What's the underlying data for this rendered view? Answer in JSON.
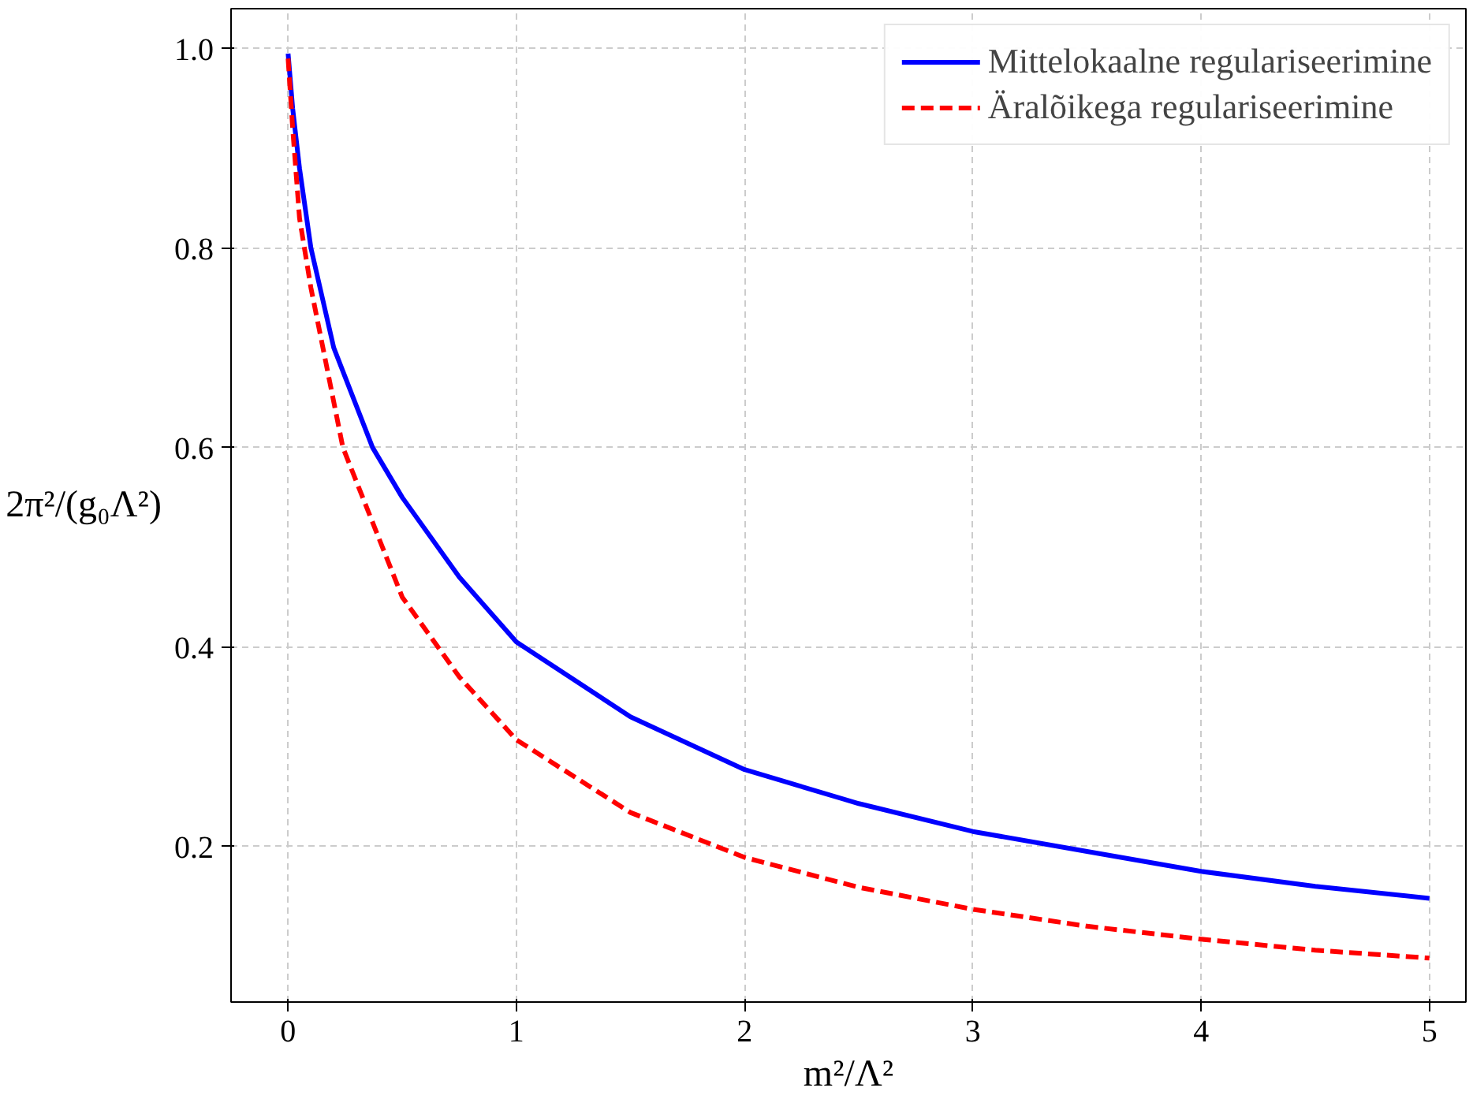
{
  "chart_data": {
    "type": "line",
    "xlabel": "m²/Λ²",
    "ylabel": "2π²/(g₀Λ²)",
    "xlim": [
      -0.25,
      5.16
    ],
    "ylim": [
      0.044,
      1.04
    ],
    "xticks": [
      0,
      1,
      2,
      3,
      4,
      5
    ],
    "yticks": [
      0.2,
      0.4,
      0.6,
      0.8,
      {
        "value": 1,
        "label": "1.0"
      }
    ],
    "grid": true,
    "legend": "top right",
    "series": [
      {
        "name": "Mittelokaalne regulariseerimine",
        "color": "#0000ff",
        "line_style": "solid",
        "x": [
          0,
          0.02,
          0.05,
          0.1,
          0.2,
          0.37,
          0.5,
          0.75,
          1,
          1.5,
          2,
          2.5,
          3,
          3.5,
          4,
          4.5,
          5
        ],
        "values": [
          0.995,
          0.94,
          0.88,
          0.8,
          0.7,
          0.6,
          0.55,
          0.47,
          0.405,
          0.33,
          0.277,
          0.243,
          0.215,
          0.195,
          0.175,
          0.16,
          0.148
        ]
      },
      {
        "name": "Äralõikega regulariseerimine",
        "color": "#ff0000",
        "line_style": "dashed",
        "x": [
          0,
          0.02,
          0.05,
          0.1,
          0.24,
          0.5,
          0.75,
          1,
          1.5,
          2,
          2.5,
          3,
          3.5,
          4,
          4.5,
          5
        ],
        "values": [
          0.99,
          0.92,
          0.83,
          0.76,
          0.6,
          0.45,
          0.37,
          0.307,
          0.234,
          0.189,
          0.159,
          0.137,
          0.12,
          0.107,
          0.096,
          0.088
        ]
      }
    ]
  }
}
